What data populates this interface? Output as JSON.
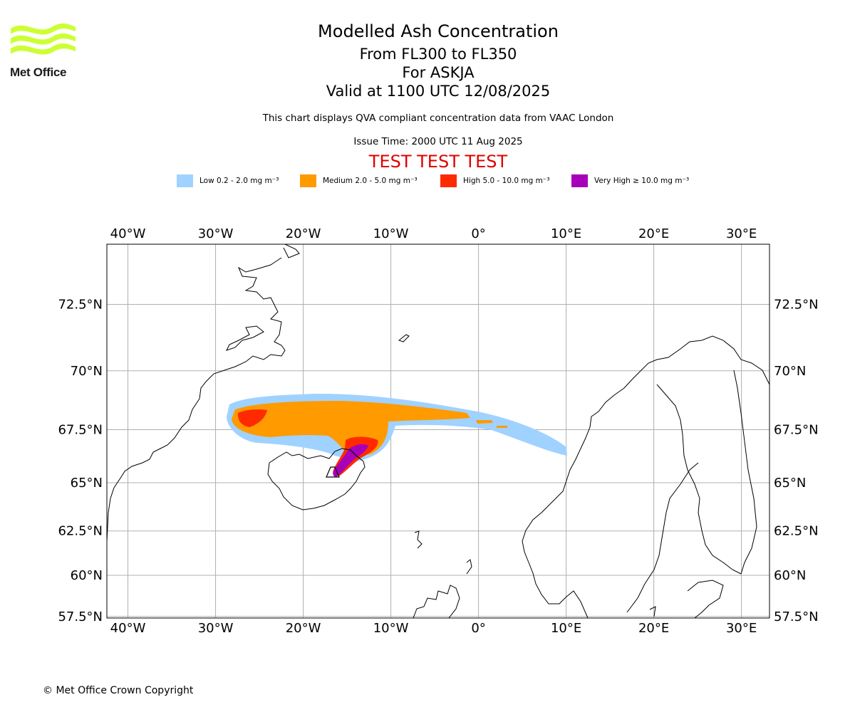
{
  "logo": {
    "text": "Met Office",
    "color": "#ccff33"
  },
  "header": {
    "title": "Modelled Ash Concentration",
    "flight_levels": "From FL300 to FL350",
    "volcano": "For ASKJA",
    "valid_time": "Valid at 1100 UTC 12/08/2025",
    "subtitle": "This chart displays QVA compliant concentration data from VAAC London",
    "issue_time": "Issue Time: 2000 UTC 11 Aug 2025",
    "test_banner": "TEST TEST TEST",
    "test_color": "#e00000"
  },
  "legend": [
    {
      "label": "Low 0.2 - 2.0 mg m⁻³",
      "color": "#a0d2ff"
    },
    {
      "label": "Medium 2.0 - 5.0 mg m⁻³",
      "color": "#ff9a00"
    },
    {
      "label": "High 5.0 - 10.0 mg m⁻³",
      "color": "#ff2a00"
    },
    {
      "label": "Very High ≥ 10.0 mg m⁻³",
      "color": "#a600b8"
    }
  ],
  "map": {
    "lon_range": [
      -42.4,
      33.2
    ],
    "lat_range": [
      57.4,
      74.5
    ],
    "lon_ticks": [
      {
        "value": -40,
        "label": "40°W"
      },
      {
        "value": -30,
        "label": "30°W"
      },
      {
        "value": -20,
        "label": "20°W"
      },
      {
        "value": -10,
        "label": "10°W"
      },
      {
        "value": 0,
        "label": "0°"
      },
      {
        "value": 10,
        "label": "10°E"
      },
      {
        "value": 20,
        "label": "20°E"
      },
      {
        "value": 30,
        "label": "30°E"
      }
    ],
    "lat_ticks": [
      {
        "value": 72.5,
        "label": "72.5°N"
      },
      {
        "value": 70,
        "label": "70°N"
      },
      {
        "value": 67.5,
        "label": "67.5°N"
      },
      {
        "value": 65,
        "label": "65°N"
      },
      {
        "value": 62.5,
        "label": "62.5°N"
      },
      {
        "value": 60,
        "label": "60°N"
      },
      {
        "value": 57.5,
        "label": "57.5°N"
      }
    ],
    "grid": true,
    "source": {
      "name": "ASKJA",
      "lon": -16.7,
      "lat": 65.0
    }
  },
  "footer": {
    "copyright": "© Met Office Crown Copyright"
  }
}
